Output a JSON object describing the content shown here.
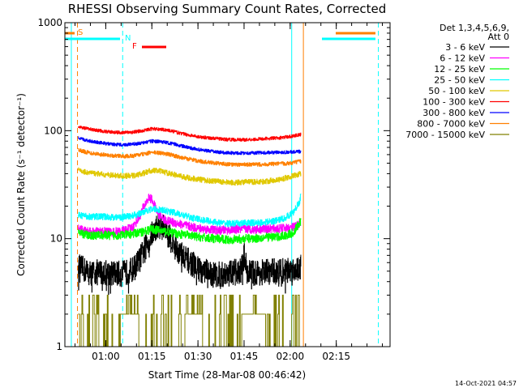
{
  "chart_data": {
    "type": "line",
    "title": "RHESSI Observing Summary Count Rates, Corrected",
    "xlabel": "Start Time (28-Mar-08 00:46:42)",
    "ylabel": "Corrected Count Rate (s⁻¹ detector⁻¹)",
    "y_scale": "log",
    "ylim": [
      1,
      1000
    ],
    "xlim_minutes": [
      46.7,
      152.5
    ],
    "grid": false,
    "legend_placement": "right-outside",
    "x_ticks": [
      {
        "t": 60,
        "label": "01:00"
      },
      {
        "t": 75,
        "label": "01:15"
      },
      {
        "t": 90,
        "label": "01:30"
      },
      {
        "t": 105,
        "label": "01:45"
      },
      {
        "t": 120,
        "label": "02:00"
      },
      {
        "t": 135,
        "label": "02:15"
      }
    ],
    "y_ticks": [
      {
        "v": 1,
        "label": "1"
      },
      {
        "v": 10,
        "label": "10"
      },
      {
        "v": 100,
        "label": "100"
      },
      {
        "v": 1000,
        "label": "1000"
      }
    ],
    "legend_header": [
      "Det 1,3,4,5,6,9,",
      "Att 0"
    ],
    "flag_labels": [
      {
        "text": "S",
        "color": "#ff8000"
      },
      {
        "text": "N",
        "color": "#00ffff"
      },
      {
        "text": "F",
        "color": "#ff0000"
      }
    ],
    "footer": "14-Oct-2021 04:57",
    "series": [
      {
        "name": "3 - 6 keV",
        "color": "#000000",
        "x": [
          51,
          55,
          59,
          62,
          65,
          67,
          69,
          71,
          73,
          75,
          77,
          79,
          81,
          84,
          87,
          90,
          93,
          96,
          99,
          102,
          104,
          105,
          106,
          108,
          111,
          114,
          117,
          120,
          122,
          123.5
        ],
        "y": [
          5.5,
          4.8,
          4.9,
          4.8,
          4.7,
          4.9,
          5.2,
          6.4,
          8.5,
          11,
          13.5,
          12.6,
          10,
          7.4,
          6.2,
          5.3,
          4.9,
          4.6,
          4.7,
          4.9,
          5.1,
          7,
          5,
          4.8,
          4.9,
          5,
          5,
          5.1,
          5.3,
          5.6
        ],
        "noise": 0.12
      },
      {
        "name": "6 - 12 keV",
        "color": "#ff00ff",
        "x": [
          51,
          55,
          59,
          62,
          65,
          67,
          69,
          71,
          72,
          74,
          75,
          77,
          79,
          81,
          84,
          87,
          90,
          93,
          96,
          99,
          102,
          105,
          108,
          111,
          114,
          117,
          120,
          122,
          123.5
        ],
        "y": [
          12.5,
          11.5,
          11.7,
          11.5,
          11.7,
          12.2,
          13,
          16,
          19,
          24,
          23,
          17,
          15,
          14.3,
          13.7,
          13,
          12.5,
          12.2,
          12,
          12,
          12.2,
          12.3,
          12.2,
          12.3,
          12.3,
          12.4,
          12.6,
          13,
          14.5
        ],
        "noise": 0.04
      },
      {
        "name": "12 - 25 keV",
        "color": "#00ff00",
        "x": [
          51,
          55,
          59,
          62,
          65,
          68,
          71,
          73,
          75,
          77,
          79,
          82,
          85,
          88,
          91,
          94,
          97,
          100,
          103,
          106,
          109,
          112,
          115,
          118,
          121,
          123.5
        ],
        "y": [
          11.2,
          10.7,
          10.8,
          10.7,
          10.8,
          11,
          11.4,
          11.8,
          12.2,
          12,
          11.7,
          11.3,
          10.9,
          10.6,
          10.3,
          10.1,
          9.9,
          9.8,
          9.9,
          10,
          10.1,
          10.3,
          10.4,
          10.6,
          11.3,
          14.8
        ],
        "noise": 0.04
      },
      {
        "name": "25 - 50 keV",
        "color": "#00ffff",
        "x": [
          51,
          55,
          59,
          62,
          65,
          68,
          71,
          73,
          76,
          79,
          82,
          85,
          88,
          91,
          94,
          97,
          100,
          103,
          106,
          109,
          112,
          115,
          118,
          121,
          123,
          123.5
        ],
        "y": [
          16.5,
          16,
          16,
          15.8,
          15.8,
          16.2,
          17,
          18.3,
          18.8,
          18.2,
          17.5,
          16.5,
          15.6,
          15,
          14.5,
          14,
          13.8,
          13.8,
          14,
          14,
          14.2,
          14.6,
          15.4,
          17.5,
          22,
          26
        ],
        "noise": 0.03
      },
      {
        "name": "50 - 100 keV",
        "color": "#e0c800",
        "x": [
          51,
          54,
          57,
          60,
          63,
          66,
          69,
          72,
          75,
          78,
          81,
          84,
          87,
          90,
          93,
          96,
          99,
          102,
          105,
          108,
          111,
          114,
          117,
          120,
          123.5
        ],
        "y": [
          43,
          41,
          40,
          39,
          38.5,
          38,
          38.3,
          40,
          43,
          42,
          40,
          38,
          36.5,
          35.5,
          34.5,
          34,
          33.5,
          33,
          33.5,
          33.5,
          33.8,
          34.5,
          35.5,
          37.5,
          40
        ],
        "noise": 0.025
      },
      {
        "name": "100 - 300 keV",
        "color": "#ff0000",
        "x": [
          51,
          54,
          57,
          60,
          63,
          66,
          69,
          72,
          75,
          78,
          81,
          84,
          87,
          90,
          93,
          96,
          99,
          102,
          105,
          108,
          111,
          114,
          117,
          120,
          123.5
        ],
        "y": [
          108,
          104,
          101,
          98,
          96.5,
          96,
          97,
          100,
          104,
          103,
          100,
          95,
          91,
          88,
          86,
          84.5,
          83,
          82.5,
          82.5,
          83,
          84,
          85,
          86,
          88.5,
          92
        ],
        "noise": 0.015
      },
      {
        "name": "300 - 800 keV",
        "color": "#0000ff",
        "x": [
          51,
          54,
          57,
          60,
          63,
          66,
          69,
          72,
          75,
          78,
          81,
          84,
          87,
          90,
          93,
          96,
          99,
          102,
          105,
          108,
          111,
          114,
          117,
          120,
          123.5
        ],
        "y": [
          85,
          81,
          78.5,
          76,
          74.5,
          74,
          75,
          77,
          80,
          79,
          76.5,
          73,
          69.5,
          67,
          65,
          63.5,
          62.5,
          62,
          62,
          62.2,
          62.5,
          62.8,
          63,
          63.5,
          64
        ],
        "noise": 0.015
      },
      {
        "name": "800 - 7000 keV",
        "color": "#ff8000",
        "x": [
          51,
          54,
          57,
          60,
          63,
          66,
          69,
          72,
          75,
          78,
          81,
          84,
          87,
          90,
          93,
          96,
          99,
          102,
          105,
          108,
          111,
          114,
          117,
          120,
          123.5
        ],
        "y": [
          66,
          63,
          61,
          59.5,
          58.5,
          58,
          58.5,
          60.5,
          63,
          62,
          60,
          57,
          54.5,
          52.5,
          51,
          50,
          49,
          48.5,
          48.5,
          48.5,
          48.8,
          49,
          49.5,
          50,
          52
        ],
        "noise": 0.018
      },
      {
        "name": "7000 - 15000 keV",
        "color": "#808000",
        "x": [],
        "y": [],
        "noise": 0
      }
    ]
  }
}
